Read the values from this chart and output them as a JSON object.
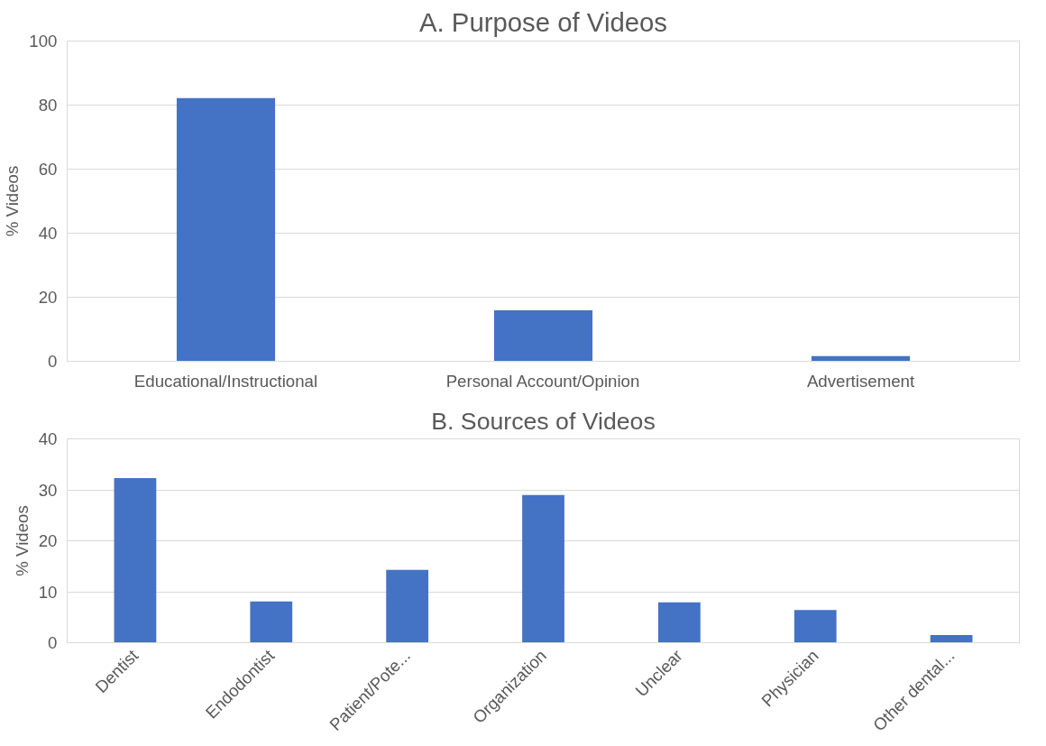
{
  "chart_data": [
    {
      "type": "bar",
      "title": "A. Purpose of Videos",
      "ylabel": "% Videos",
      "categories": [
        "Educational/Instructional",
        "Personal Account/Opinion",
        "Advertisement"
      ],
      "values": [
        82.2,
        15.9,
        1.6
      ],
      "color": "#4472c4",
      "ylim": [
        0,
        100
      ],
      "yticks": [
        0,
        20,
        40,
        60,
        80,
        100
      ],
      "grid": "y"
    },
    {
      "type": "bar",
      "title": "B. Sources of Videos",
      "ylabel": "% Videos",
      "categories": [
        "Dentist",
        "Endodontist",
        "Patient/Pote...",
        "Organization",
        "Unclear",
        "Physician",
        "Other dental..."
      ],
      "values": [
        32.3,
        8.1,
        14.3,
        29.0,
        7.9,
        6.4,
        1.5
      ],
      "color": "#4472c4",
      "ylim": [
        0,
        40
      ],
      "yticks": [
        0,
        10,
        20,
        30,
        40
      ],
      "grid": "y"
    }
  ]
}
